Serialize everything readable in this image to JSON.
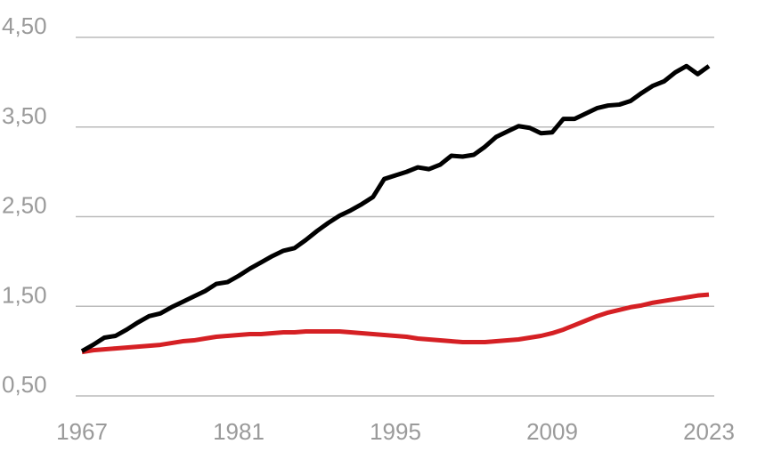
{
  "chart_data": {
    "type": "line",
    "x": [
      1967,
      1968,
      1969,
      1970,
      1971,
      1972,
      1973,
      1974,
      1975,
      1976,
      1977,
      1978,
      1979,
      1980,
      1981,
      1982,
      1983,
      1984,
      1985,
      1986,
      1987,
      1988,
      1989,
      1990,
      1991,
      1992,
      1993,
      1994,
      1995,
      1996,
      1997,
      1998,
      1999,
      2000,
      2001,
      2002,
      2003,
      2004,
      2005,
      2006,
      2007,
      2008,
      2009,
      2010,
      2011,
      2012,
      2013,
      2014,
      2015,
      2016,
      2017,
      2018,
      2019,
      2020,
      2021,
      2022,
      2023
    ],
    "series": [
      {
        "color": "#000000",
        "values": [
          1.0,
          1.07,
          1.15,
          1.17,
          1.24,
          1.32,
          1.39,
          1.42,
          1.49,
          1.55,
          1.61,
          1.67,
          1.75,
          1.77,
          1.84,
          1.92,
          1.99,
          2.06,
          2.12,
          2.15,
          2.24,
          2.34,
          2.43,
          2.51,
          2.57,
          2.64,
          2.72,
          2.92,
          2.96,
          3.0,
          3.05,
          3.03,
          3.08,
          3.18,
          3.17,
          3.19,
          3.28,
          3.39,
          3.45,
          3.51,
          3.49,
          3.43,
          3.44,
          3.59,
          3.59,
          3.65,
          3.71,
          3.74,
          3.75,
          3.79,
          3.88,
          3.96,
          4.01,
          4.11,
          4.18,
          4.09,
          4.18
        ]
      },
      {
        "color": "#d52024",
        "values": [
          0.99,
          1.01,
          1.02,
          1.03,
          1.04,
          1.05,
          1.06,
          1.07,
          1.09,
          1.11,
          1.12,
          1.14,
          1.16,
          1.17,
          1.18,
          1.19,
          1.19,
          1.2,
          1.21,
          1.21,
          1.22,
          1.22,
          1.22,
          1.22,
          1.21,
          1.2,
          1.19,
          1.18,
          1.17,
          1.16,
          1.14,
          1.13,
          1.12,
          1.11,
          1.1,
          1.1,
          1.1,
          1.11,
          1.12,
          1.13,
          1.15,
          1.17,
          1.2,
          1.24,
          1.29,
          1.34,
          1.39,
          1.43,
          1.46,
          1.49,
          1.51,
          1.54,
          1.56,
          1.58,
          1.6,
          1.62,
          1.63
        ]
      }
    ],
    "xlim": [
      1967,
      2023
    ],
    "xticks": [
      1967,
      1981,
      1995,
      2009,
      2023
    ],
    "ylim": [
      0.5,
      4.5
    ],
    "yticks": [
      {
        "value": 0.5,
        "label": "0,50"
      },
      {
        "value": 1.5,
        "label": "1,50"
      },
      {
        "value": 2.5,
        "label": "2,50"
      },
      {
        "value": 3.5,
        "label": "3,50"
      },
      {
        "value": 4.5,
        "label": "4,50"
      }
    ],
    "grid": true
  }
}
